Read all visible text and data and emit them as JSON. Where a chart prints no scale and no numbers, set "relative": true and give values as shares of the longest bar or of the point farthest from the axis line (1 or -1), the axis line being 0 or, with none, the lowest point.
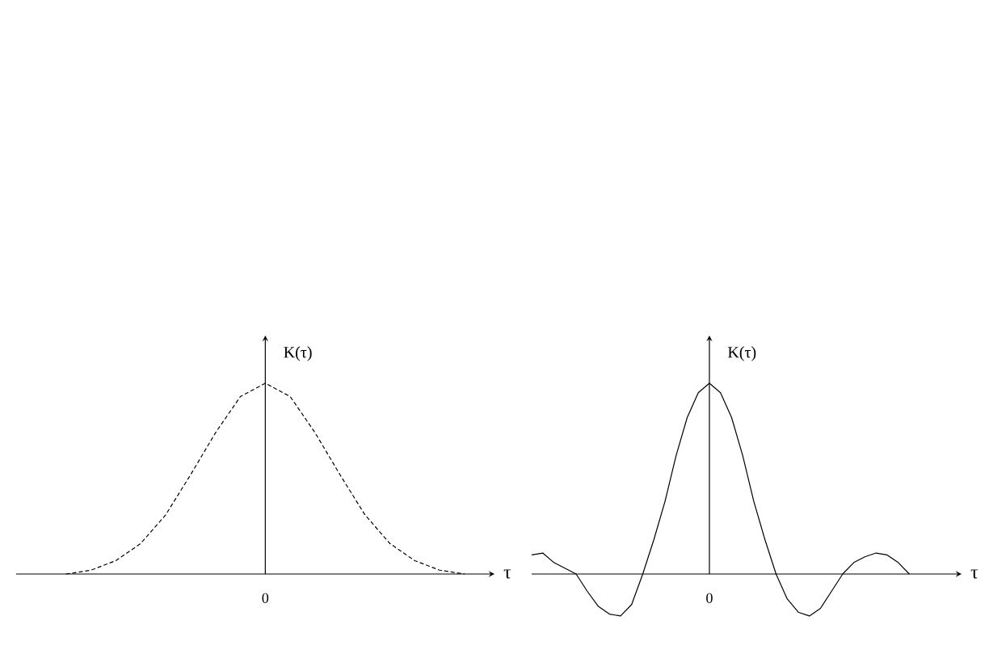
{
  "chart_data": [
    {
      "type": "line",
      "relative": true,
      "xlabel": "τ",
      "ylabel": "K(τ)",
      "annotations": [
        "0"
      ],
      "marker": "none",
      "line_style": "dashed",
      "color": "#000000",
      "categories": [
        null,
        null,
        null,
        null,
        null,
        null,
        null,
        null,
        null,
        null,
        null,
        null,
        null,
        null,
        null,
        null,
        null
      ],
      "values": [
        0.0,
        0.02,
        0.07,
        0.16,
        0.31,
        0.52,
        0.74,
        0.93,
        1,
        0.93,
        0.74,
        0.52,
        0.31,
        0.16,
        0.07,
        0.02,
        0.0
      ]
    },
    {
      "type": "line",
      "relative": true,
      "xlabel": "τ",
      "ylabel": "K(τ)",
      "annotations": [
        "0"
      ],
      "marker": "none",
      "line_style": "solid",
      "color": "#000000",
      "categories": [
        null,
        null,
        null,
        null,
        null,
        null,
        null,
        null,
        null,
        null,
        null,
        null,
        null,
        null,
        null,
        null,
        null,
        null,
        null,
        null,
        null,
        null,
        null,
        null,
        null,
        null,
        null,
        null,
        null,
        null,
        null,
        null,
        null,
        null,
        null
      ],
      "values": [
        0.1,
        0.11,
        0.06,
        0.03,
        0.0,
        -0.09,
        -0.17,
        -0.21,
        -0.22,
        -0.16,
        0.0,
        0.18,
        0.38,
        0.62,
        0.82,
        0.95,
        1,
        0.95,
        0.82,
        0.62,
        0.38,
        0.18,
        0.0,
        -0.13,
        -0.2,
        -0.22,
        -0.18,
        -0.09,
        0.0,
        0.06,
        0.09,
        0.11,
        0.1,
        0.06,
        0.0
      ]
    }
  ]
}
